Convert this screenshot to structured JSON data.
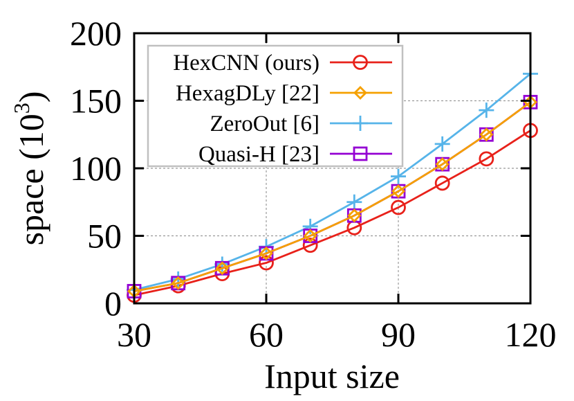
{
  "chart_data": {
    "type": "line",
    "title": "",
    "xlabel": "Input size",
    "ylabel": "space (10^3)",
    "ylabel_base": "space (10",
    "ylabel_exp": "3",
    "ylabel_close": ")",
    "xlim": [
      30,
      120
    ],
    "ylim": [
      0,
      200
    ],
    "xticks": [
      30,
      60,
      90,
      120
    ],
    "yticks": [
      0,
      50,
      100,
      150,
      200
    ],
    "grid": true,
    "legend_position": "upper-left-inside",
    "x": [
      30,
      40,
      50,
      60,
      70,
      80,
      90,
      100,
      110,
      120
    ],
    "series": [
      {
        "name": "HexCNN (ours)",
        "color": "#e8211a",
        "marker": "circle",
        "values": [
          6,
          13,
          22,
          30,
          43,
          56,
          71,
          89,
          107,
          128
        ]
      },
      {
        "name": "HexagDLy [22]",
        "color": "#f5a000",
        "marker": "diamond",
        "values": [
          9,
          15,
          26,
          37,
          50,
          65,
          83,
          103,
          125,
          149
        ]
      },
      {
        "name": "ZeroOut [6]",
        "color": "#56b4e9",
        "marker": "plus",
        "values": [
          10,
          18,
          29,
          42,
          57,
          75,
          94,
          118,
          143,
          170
        ]
      },
      {
        "name": "Quasi-H [23]",
        "color": "#9400d3",
        "marker": "square",
        "values": [
          9,
          15,
          26,
          37,
          50,
          65,
          83,
          103,
          125,
          149
        ]
      }
    ]
  }
}
